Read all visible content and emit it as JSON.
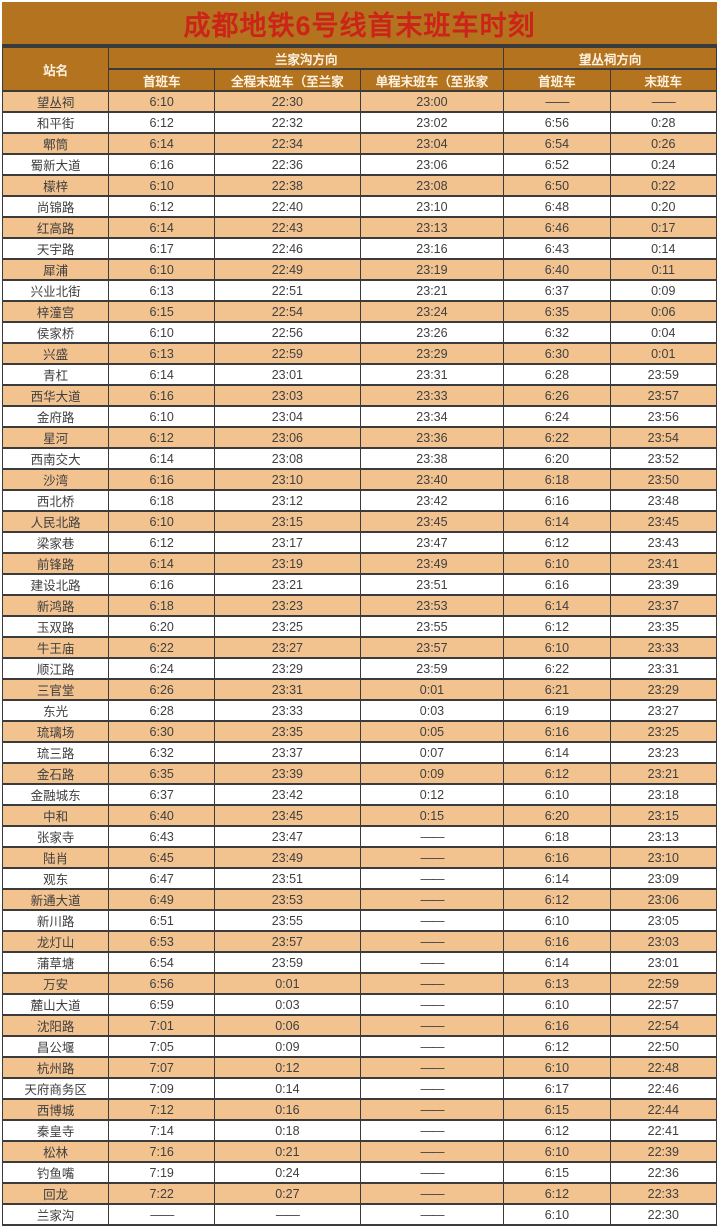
{
  "colors": {
    "header_bg": "#b4731e",
    "title_text": "#cc2418",
    "header_text": "#fdf3e2",
    "row_alt_bg": "#f2c28f",
    "row_bg": "#ffffff",
    "grid": "#3b3b3b",
    "cell_text": "#3f3f3f"
  },
  "chart_data": {
    "type": "table",
    "title": "成都地铁6号线首末班车时刻",
    "station_column_header": "站名",
    "column_groups": [
      {
        "label": "兰家沟方向",
        "columns": [
          "首班车",
          "全程末班车（至兰家",
          "单程末班车（至张家"
        ]
      },
      {
        "label": "望丛祠方向",
        "columns": [
          "首班车",
          "末班车"
        ]
      }
    ],
    "columns": [
      "站名",
      "首班车",
      "全程末班车（至兰家",
      "单程末班车（至张家",
      "首班车",
      "末班车"
    ],
    "rows": [
      [
        "望丛祠",
        "6:10",
        "22:30",
        "23:00",
        "——",
        "——"
      ],
      [
        "和平街",
        "6:12",
        "22:32",
        "23:02",
        "6:56",
        "0:28"
      ],
      [
        "郫筒",
        "6:14",
        "22:34",
        "23:04",
        "6:54",
        "0:26"
      ],
      [
        "蜀新大道",
        "6:16",
        "22:36",
        "23:06",
        "6:52",
        "0:24"
      ],
      [
        "檬梓",
        "6:10",
        "22:38",
        "23:08",
        "6:50",
        "0:22"
      ],
      [
        "尚锦路",
        "6:12",
        "22:40",
        "23:10",
        "6:48",
        "0:20"
      ],
      [
        "红高路",
        "6:14",
        "22:43",
        "23:13",
        "6:46",
        "0:17"
      ],
      [
        "天宇路",
        "6:17",
        "22:46",
        "23:16",
        "6:43",
        "0:14"
      ],
      [
        "犀浦",
        "6:10",
        "22:49",
        "23:19",
        "6:40",
        "0:11"
      ],
      [
        "兴业北街",
        "6:13",
        "22:51",
        "23:21",
        "6:37",
        "0:09"
      ],
      [
        "梓潼宫",
        "6:15",
        "22:54",
        "23:24",
        "6:35",
        "0:06"
      ],
      [
        "侯家桥",
        "6:10",
        "22:56",
        "23:26",
        "6:32",
        "0:04"
      ],
      [
        "兴盛",
        "6:13",
        "22:59",
        "23:29",
        "6:30",
        "0:01"
      ],
      [
        "青杠",
        "6:14",
        "23:01",
        "23:31",
        "6:28",
        "23:59"
      ],
      [
        "西华大道",
        "6:16",
        "23:03",
        "23:33",
        "6:26",
        "23:57"
      ],
      [
        "金府路",
        "6:10",
        "23:04",
        "23:34",
        "6:24",
        "23:56"
      ],
      [
        "星河",
        "6:12",
        "23:06",
        "23:36",
        "6:22",
        "23:54"
      ],
      [
        "西南交大",
        "6:14",
        "23:08",
        "23:38",
        "6:20",
        "23:52"
      ],
      [
        "沙湾",
        "6:16",
        "23:10",
        "23:40",
        "6:18",
        "23:50"
      ],
      [
        "西北桥",
        "6:18",
        "23:12",
        "23:42",
        "6:16",
        "23:48"
      ],
      [
        "人民北路",
        "6:10",
        "23:15",
        "23:45",
        "6:14",
        "23:45"
      ],
      [
        "梁家巷",
        "6:12",
        "23:17",
        "23:47",
        "6:12",
        "23:43"
      ],
      [
        "前锋路",
        "6:14",
        "23:19",
        "23:49",
        "6:10",
        "23:41"
      ],
      [
        "建设北路",
        "6:16",
        "23:21",
        "23:51",
        "6:16",
        "23:39"
      ],
      [
        "新鸿路",
        "6:18",
        "23:23",
        "23:53",
        "6:14",
        "23:37"
      ],
      [
        "玉双路",
        "6:20",
        "23:25",
        "23:55",
        "6:12",
        "23:35"
      ],
      [
        "牛王庙",
        "6:22",
        "23:27",
        "23:57",
        "6:10",
        "23:33"
      ],
      [
        "顺江路",
        "6:24",
        "23:29",
        "23:59",
        "6:22",
        "23:31"
      ],
      [
        "三官堂",
        "6:26",
        "23:31",
        "0:01",
        "6:21",
        "23:29"
      ],
      [
        "东光",
        "6:28",
        "23:33",
        "0:03",
        "6:19",
        "23:27"
      ],
      [
        "琉璃场",
        "6:30",
        "23:35",
        "0:05",
        "6:16",
        "23:25"
      ],
      [
        "琉三路",
        "6:32",
        "23:37",
        "0:07",
        "6:14",
        "23:23"
      ],
      [
        "金石路",
        "6:35",
        "23:39",
        "0:09",
        "6:12",
        "23:21"
      ],
      [
        "金融城东",
        "6:37",
        "23:42",
        "0:12",
        "6:10",
        "23:18"
      ],
      [
        "中和",
        "6:40",
        "23:45",
        "0:15",
        "6:20",
        "23:15"
      ],
      [
        "张家寺",
        "6:43",
        "23:47",
        "——",
        "6:18",
        "23:13"
      ],
      [
        "陆肖",
        "6:45",
        "23:49",
        "——",
        "6:16",
        "23:10"
      ],
      [
        "观东",
        "6:47",
        "23:51",
        "——",
        "6:14",
        "23:09"
      ],
      [
        "新通大道",
        "6:49",
        "23:53",
        "——",
        "6:12",
        "23:06"
      ],
      [
        "新川路",
        "6:51",
        "23:55",
        "——",
        "6:10",
        "23:05"
      ],
      [
        "龙灯山",
        "6:53",
        "23:57",
        "——",
        "6:16",
        "23:03"
      ],
      [
        "蒲草塘",
        "6:54",
        "23:59",
        "——",
        "6:14",
        "23:01"
      ],
      [
        "万安",
        "6:56",
        "0:01",
        "——",
        "6:13",
        "22:59"
      ],
      [
        "麓山大道",
        "6:59",
        "0:03",
        "——",
        "6:10",
        "22:57"
      ],
      [
        "沈阳路",
        "7:01",
        "0:06",
        "——",
        "6:16",
        "22:54"
      ],
      [
        "昌公堰",
        "7:05",
        "0:09",
        "——",
        "6:12",
        "22:50"
      ],
      [
        "杭州路",
        "7:07",
        "0:12",
        "——",
        "6:10",
        "22:48"
      ],
      [
        "天府商务区",
        "7:09",
        "0:14",
        "——",
        "6:17",
        "22:46"
      ],
      [
        "西博城",
        "7:12",
        "0:16",
        "——",
        "6:15",
        "22:44"
      ],
      [
        "秦皇寺",
        "7:14",
        "0:18",
        "——",
        "6:12",
        "22:41"
      ],
      [
        "松林",
        "7:16",
        "0:21",
        "——",
        "6:10",
        "22:39"
      ],
      [
        "钓鱼嘴",
        "7:19",
        "0:24",
        "——",
        "6:15",
        "22:36"
      ],
      [
        "回龙",
        "7:22",
        "0:27",
        "——",
        "6:12",
        "22:33"
      ],
      [
        "兰家沟",
        "——",
        "——",
        "——",
        "6:10",
        "22:30"
      ]
    ]
  }
}
